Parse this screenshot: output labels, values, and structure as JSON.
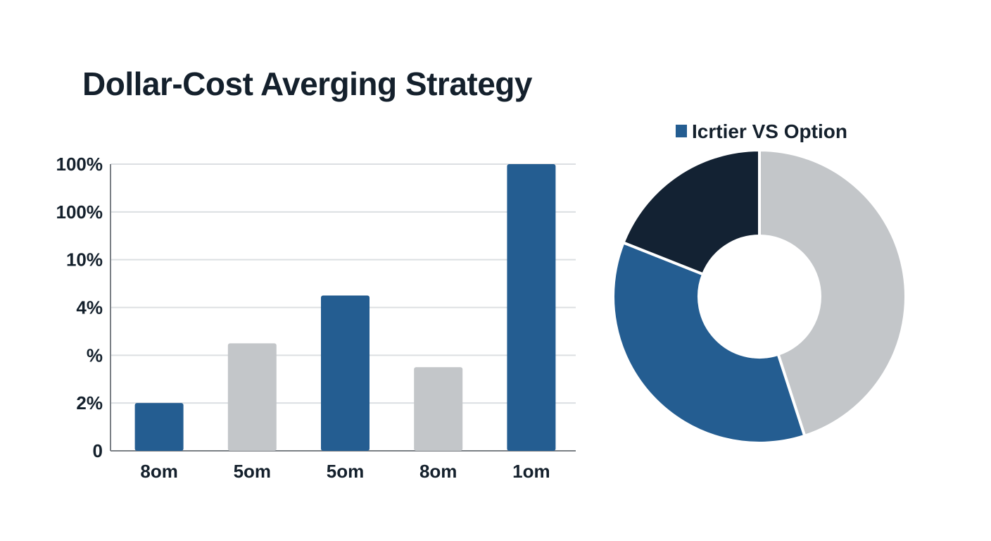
{
  "title": "Dollar-Cost Averging Strategy",
  "chart_data": [
    {
      "type": "bar",
      "categories": [
        "8om",
        "5om",
        "5om",
        "8om",
        "1om"
      ],
      "values": [
        1,
        2.25,
        3.25,
        1.75,
        6
      ],
      "y_tick_labels": [
        "0",
        "2%",
        "%",
        "4%",
        "10%",
        "100%",
        "100%"
      ],
      "ylim": [
        0,
        6
      ],
      "grid": true,
      "colors": [
        "#245d91",
        "#c3c6c9",
        "#245d91",
        "#c3c6c9",
        "#245d91"
      ],
      "axis_color": "#7a7f85",
      "grid_color": "#dcdfe2"
    },
    {
      "type": "pie",
      "donut": true,
      "legend_label": "Icrtier VS Option",
      "legend_color": "#245d91",
      "slices": [
        {
          "value": 45,
          "color": "#c3c6c9"
        },
        {
          "value": 36,
          "color": "#245d91"
        },
        {
          "value": 19,
          "color": "#132233"
        }
      ]
    }
  ]
}
